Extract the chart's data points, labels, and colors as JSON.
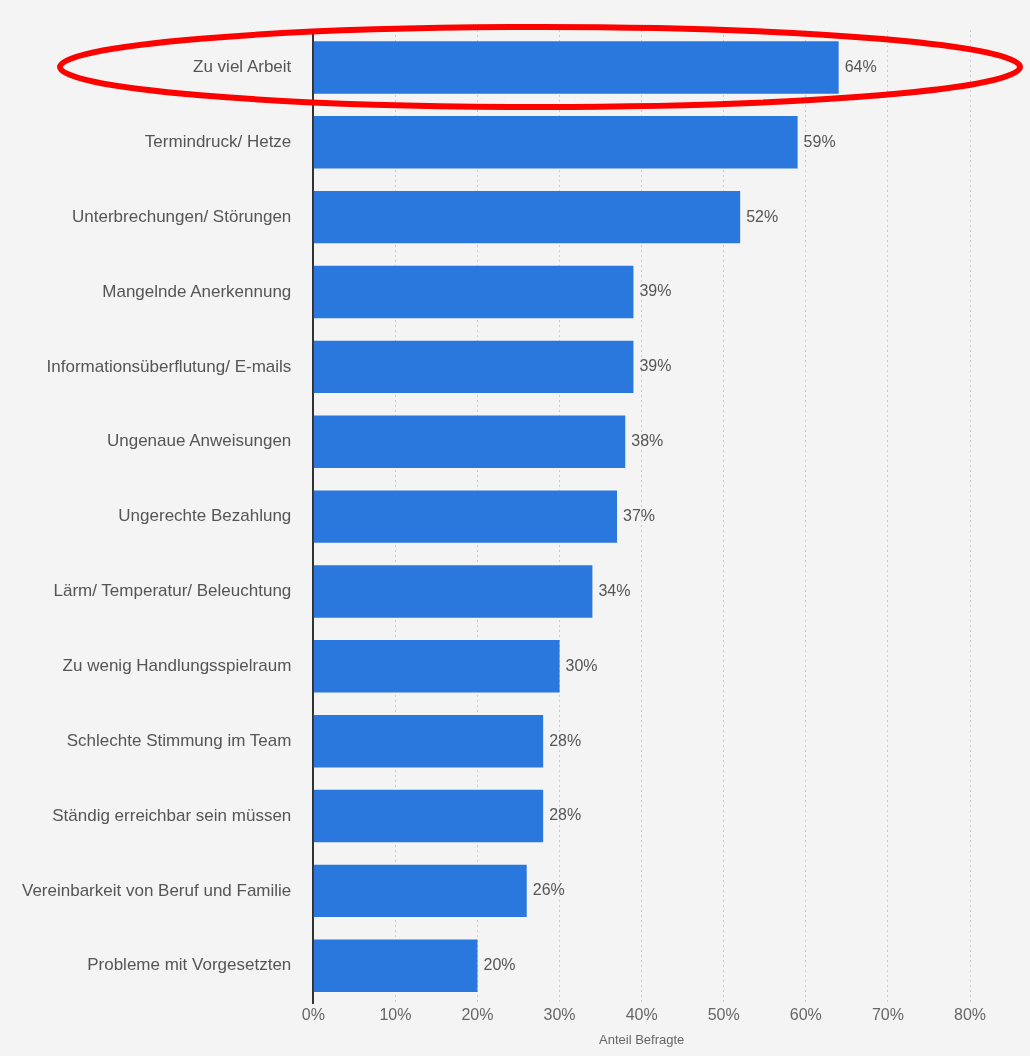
{
  "chart_data": {
    "type": "bar",
    "orientation": "horizontal",
    "xlabel": "Anteil Befragte",
    "categories": [
      "Zu viel Arbeit",
      "Termindruck/ Hetze",
      "Unterbrechungen/ Störungen",
      "Mangelnde Anerkennung",
      "Informationsüberflutung/ E-mails",
      "Ungenaue Anweisungen",
      "Ungerechte Bezahlung",
      "Lärm/ Temperatur/ Beleuchtung",
      "Zu wenig Handlungsspielraum",
      "Schlechte Stimmung im Team",
      "Ständig erreichbar sein müssen",
      "Vereinbarkeit von Beruf und Familie",
      "Probleme mit Vorgesetzten"
    ],
    "values": [
      64,
      59,
      52,
      39,
      39,
      38,
      37,
      34,
      30,
      28,
      28,
      26,
      20
    ],
    "value_labels": [
      "64%",
      "59%",
      "52%",
      "39%",
      "39%",
      "38%",
      "37%",
      "34%",
      "30%",
      "28%",
      "28%",
      "26%",
      "20%"
    ],
    "color": "#2a78de",
    "xlim": [
      0,
      80
    ],
    "xticks": [
      {
        "value": 0,
        "label": "0%"
      },
      {
        "value": 10,
        "label": "10%"
      },
      {
        "value": 20,
        "label": "20%"
      },
      {
        "value": 30,
        "label": "30%"
      },
      {
        "value": 40,
        "label": "40%"
      },
      {
        "value": 50,
        "label": "50%"
      },
      {
        "value": 60,
        "label": "60%"
      },
      {
        "value": 70,
        "label": "70%"
      },
      {
        "value": 80,
        "label": "80%"
      }
    ],
    "grid": "x",
    "legend": false
  }
}
